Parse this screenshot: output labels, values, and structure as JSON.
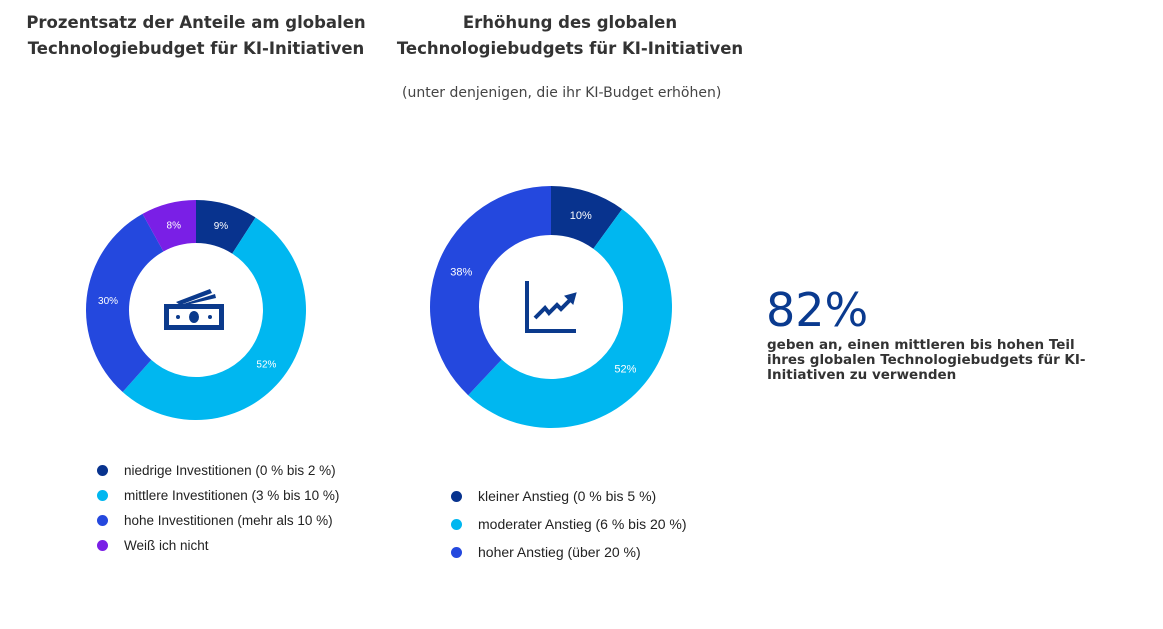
{
  "chart_data": [
    {
      "type": "pie",
      "title": "Prozentsatz der Anteile am globalen\nTechnologiebudget für KI-Initiativen",
      "categories": [
        "niedrige Investitionen (0 % bis 2 %)",
        "mittlere Investitionen (3 % bis 10 %)",
        "hohe Investitionen (mehr als 10 %)",
        "Weiß ich nicht"
      ],
      "values": [
        9,
        52,
        30,
        8
      ],
      "labels": [
        "9%",
        "52%",
        "30%",
        "8%"
      ],
      "colors": [
        "#08338e",
        "#00b7f0",
        "#2448de",
        "#7a1fe6"
      ],
      "center_icon": "money-icon",
      "legend": "bottom"
    },
    {
      "type": "pie",
      "title": "Erhöhung des globalen\nTechnologiebudgets für KI-Initiativen",
      "subtitle": "(unter denjenigen, die ihr KI-Budget erhöhen)",
      "categories": [
        "kleiner Anstieg (0 % bis 5 %)",
        "moderater Anstieg (6 % bis 20 %)",
        "hoher Anstieg (über 20 %)"
      ],
      "values": [
        10,
        52,
        38
      ],
      "labels": [
        "10%",
        "52%",
        "38%"
      ],
      "colors": [
        "#08338e",
        "#00b7f0",
        "#2448de"
      ],
      "center_icon": "growth-chart-icon",
      "legend": "bottom"
    }
  ],
  "stat": {
    "value": "82%",
    "text": "geben an, einen mittleren bis hohen Teil ihres globalen Technologiebudgets für KI-Initiativen zu verwenden"
  }
}
